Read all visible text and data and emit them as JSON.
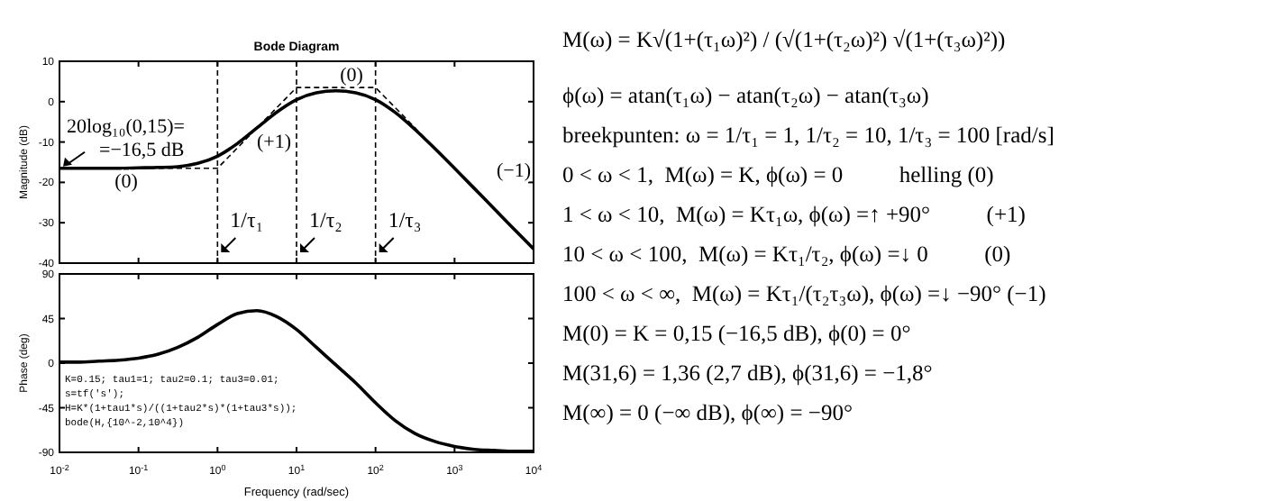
{
  "chart_data": [
    {
      "type": "line",
      "title": "Bode Diagram",
      "ylabel": "Magnitude (dB)",
      "log": "x",
      "tick_labels": "y",
      "xlim": [
        0.01,
        10000
      ],
      "xticks": [
        {
          "value": 0.01,
          "label": null
        },
        {
          "value": 0.1,
          "label": null
        },
        {
          "value": 1,
          "label": null
        },
        {
          "value": 10,
          "label": null
        },
        {
          "value": 100,
          "label": null
        },
        {
          "value": 1000,
          "label": null
        },
        {
          "value": 10000,
          "label": null
        }
      ],
      "ylim": [
        -40,
        10
      ],
      "yticks": [
        -40,
        -30,
        -20,
        -10,
        0,
        10
      ],
      "series": [
        {
          "color": "#000000",
          "line_style": "solid",
          "x": [
            0.01,
            0.0178,
            0.0316,
            0.0562,
            0.1,
            0.178,
            0.316,
            0.562,
            1,
            1.78,
            3.16,
            5.62,
            10,
            17.8,
            31.6,
            56.2,
            100,
            178,
            316,
            562,
            1000,
            1780,
            3160,
            5620,
            10000
          ],
          "values": [
            -16.5,
            -16.5,
            -16.5,
            -16.5,
            -16.4,
            -16.3,
            -16.1,
            -15.3,
            -13.5,
            -10.4,
            -6.5,
            -2.6,
            0.5,
            2.2,
            2.7,
            2.2,
            0.5,
            -2.7,
            -6.9,
            -11.6,
            -16.5,
            -21.5,
            -26.5,
            -31.5,
            -36.5
          ]
        },
        {
          "color": "#000000",
          "line_style": "dashed",
          "x": [
            0.01,
            1,
            10,
            100,
            10000
          ],
          "values": [
            -16.5,
            -16.5,
            3.5,
            3.5,
            -36.5
          ]
        }
      ],
      "ref_lines": [
        {
          "axis": "x",
          "value": 1,
          "label": "1/τ₁",
          "line_style": "dashed"
        },
        {
          "axis": "x",
          "value": 10,
          "label": "1/τ₂",
          "line_style": "dashed"
        },
        {
          "axis": "x",
          "value": 100,
          "label": "1/τ₃",
          "line_style": "dashed"
        }
      ],
      "annotations": [
        {
          "text": "20log₁₀(0,15)=\n=−16,5 dB",
          "x": 0.01,
          "y": -16.5
        },
        "(0)",
        "(+1)",
        "(0)",
        "(−1)"
      ]
    },
    {
      "type": "line",
      "ylabel": "Phase (deg)",
      "xlabel": "Frequency (rad/sec)",
      "log": "x",
      "xlim": [
        0.01,
        10000
      ],
      "xticks": [
        {
          "value": 0.01,
          "label": "10$^{-2}$"
        },
        {
          "value": 0.1,
          "label": "10$^{-1}$"
        },
        {
          "value": 1,
          "label": "10$^{0}$"
        },
        {
          "value": 10,
          "label": "10$^{1}$"
        },
        {
          "value": 100,
          "label": "10$^{2}$"
        },
        {
          "value": 1000,
          "label": "10$^{3}$"
        },
        {
          "value": 10000,
          "label": "10$^{4}$"
        }
      ],
      "ylim": [
        -90,
        90
      ],
      "yticks": [
        -90,
        -45,
        0,
        45,
        90
      ],
      "series": [
        {
          "color": "#000000",
          "line_style": "solid",
          "x": [
            0.01,
            0.0178,
            0.0316,
            0.0562,
            0.1,
            0.178,
            0.316,
            0.562,
            1,
            1.78,
            3.16,
            5.62,
            10,
            17.8,
            31.6,
            56.2,
            100,
            178,
            316,
            562,
            1000,
            1780,
            3160,
            5620,
            10000
          ],
          "values": [
            1,
            1,
            2,
            3,
            5,
            9,
            16,
            26,
            39,
            50,
            53,
            47,
            34,
            16,
            -2,
            -20,
            -40,
            -58,
            -71,
            -79,
            -84,
            -87,
            -88,
            -89,
            -89
          ]
        }
      ],
      "annotations": [
        "K=0.15; tau1=1; tau2=0.1; tau3=0.01;",
        "s=tf('s');",
        "H=K*(1+tau1*s)/((1+tau2*s)*(1+tau3*s));",
        "bode(H,{10^-2,10^4})"
      ]
    },
    {
      "type": "other",
      "annotations": [
        "M(ω) = K√(1+(τ₁ω)²) / (√(1+(τ₂ω)²) √(1+(τ₃ω)²))",
        "ϕ(ω) = atan(τ₁ω) − atan(τ₂ω) − atan(τ₃ω)",
        "breekpunten: ω = 1/τ₁ = 1, 1/τ₂ = 10, 1/τ₃ = 100 [rad/s]",
        "0 < ω < 1,  M(ω) = K, ϕ(ω) = 0          helling (0)",
        "1 < ω < 10,  M(ω) = Kτ₁ω, ϕ(ω) =↑ +90°          (+1)",
        "10 < ω < 100,  M(ω) = Kτ₁/τ₂, ϕ(ω) =↓ 0          (0)",
        "100 < ω < ∞,  M(ω) = Kτ₁/(τ₂τ₃ω), ϕ(ω) =↓ −90° (−1)",
        "M(0) = K = 0,15 (−16,5 dB), ϕ(0) = 0°",
        "M(31,6) = 1,36 (2,7 dB), ϕ(31,6) = −1,8°",
        "M(∞) = 0 (−∞ dB), ϕ(∞) = −90°"
      ]
    }
  ]
}
